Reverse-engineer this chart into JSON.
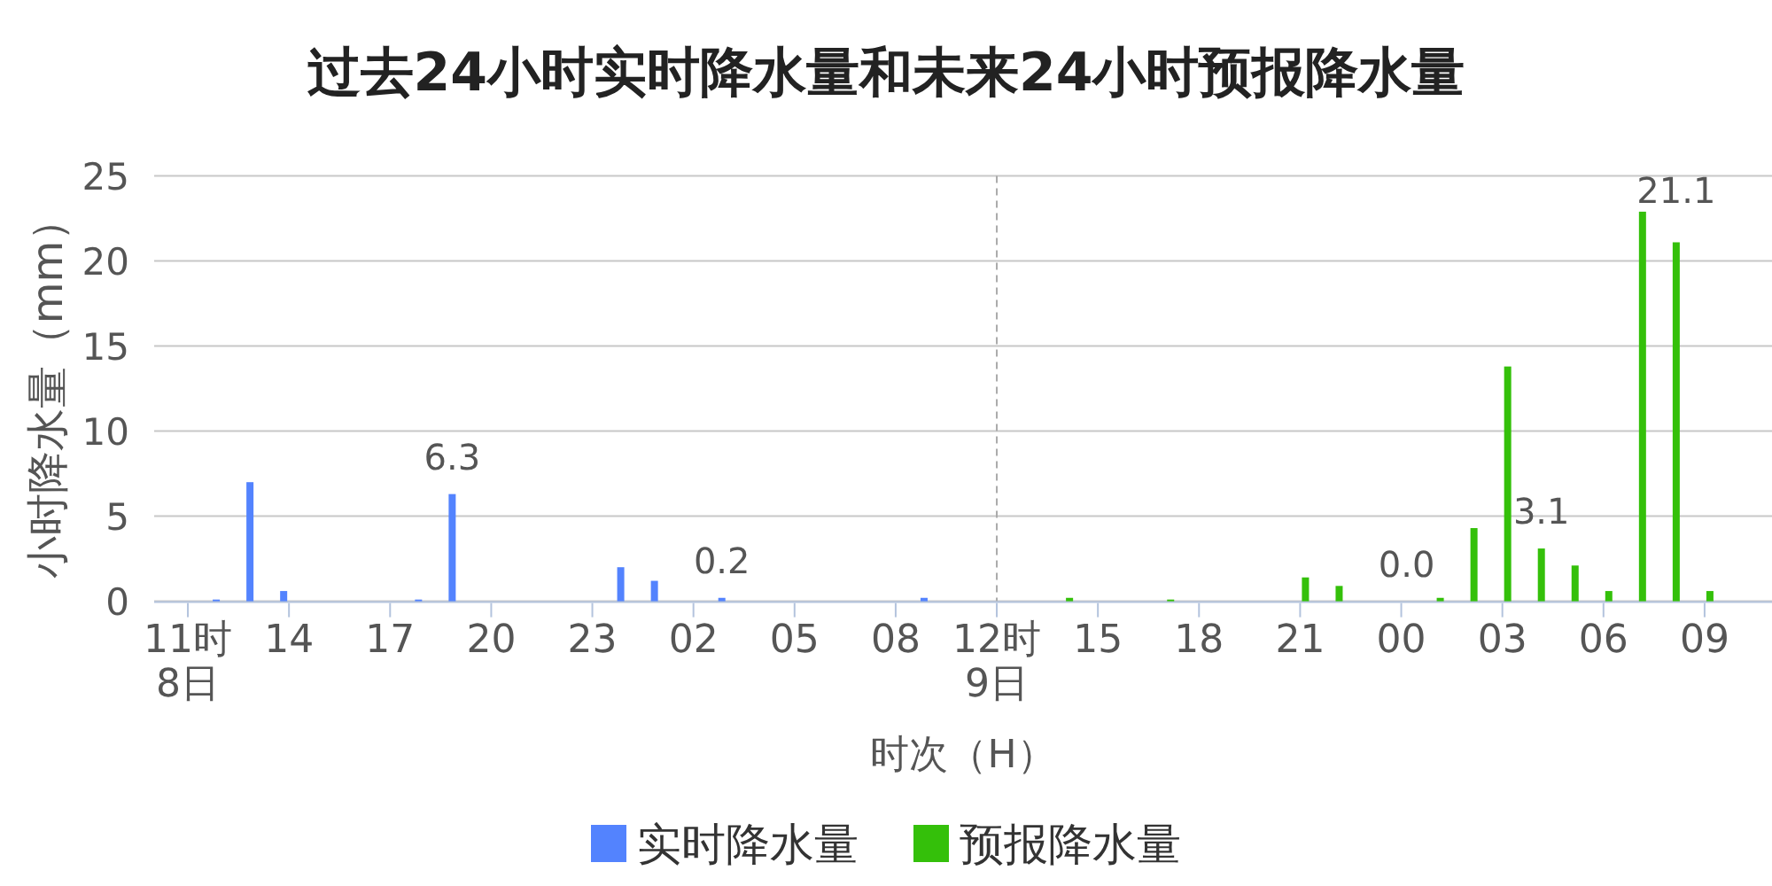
{
  "chart_data": {
    "type": "bar",
    "title": "过去24小时实时降水量和未来24小时预报降水量",
    "xlabel": "时次（H）",
    "ylabel": "小时降水量（mm）",
    "categories": [
      null,
      "11时\n8日",
      null,
      null,
      "14",
      null,
      null,
      "17",
      null,
      null,
      "20",
      null,
      null,
      "23",
      null,
      null,
      "02",
      null,
      null,
      "05",
      null,
      null,
      "08",
      null,
      null,
      "12时\n9日",
      null,
      null,
      "15",
      null,
      null,
      "18",
      null,
      null,
      "21",
      null,
      null,
      "00",
      null,
      null,
      "03",
      null,
      null,
      "06",
      null,
      null,
      "09",
      null,
      null
    ],
    "series": [
      {
        "name": "实时降水量",
        "color": "#5383fe",
        "values": [
          null,
          null,
          0.1,
          7.0,
          0.6,
          null,
          null,
          null,
          0.1,
          6.3,
          null,
          null,
          null,
          null,
          2.0,
          1.2,
          null,
          0.2,
          null,
          null,
          null,
          null,
          null,
          0.2,
          null,
          null,
          null,
          null,
          null,
          null,
          null,
          null,
          null,
          null,
          null,
          null,
          null,
          null,
          null,
          null,
          null,
          null,
          null,
          null,
          null,
          null,
          null,
          null,
          null
        ],
        "value_labels": [
          null,
          null,
          null,
          null,
          null,
          null,
          null,
          null,
          null,
          "6.3",
          null,
          null,
          null,
          null,
          null,
          null,
          null,
          "0.2",
          null,
          null,
          null,
          null,
          null,
          null,
          null,
          null,
          null,
          null,
          null,
          null,
          null,
          null,
          null,
          null,
          null,
          null,
          null,
          null,
          null,
          null,
          null,
          null,
          null,
          null,
          null,
          null,
          null,
          null,
          null
        ]
      },
      {
        "name": "预报降水量",
        "color": "#34c00a",
        "values": [
          null,
          null,
          null,
          null,
          null,
          null,
          null,
          null,
          null,
          null,
          null,
          null,
          null,
          null,
          null,
          null,
          null,
          null,
          null,
          null,
          null,
          null,
          null,
          null,
          null,
          null,
          null,
          0.2,
          null,
          null,
          0.1,
          null,
          null,
          null,
          1.4,
          0.9,
          null,
          0.0,
          0.2,
          4.3,
          13.8,
          3.1,
          2.1,
          0.6,
          22.9,
          21.1,
          0.6,
          null,
          null
        ],
        "value_labels": [
          null,
          null,
          null,
          null,
          null,
          null,
          null,
          null,
          null,
          null,
          null,
          null,
          null,
          null,
          null,
          null,
          null,
          null,
          null,
          null,
          null,
          null,
          null,
          null,
          null,
          null,
          null,
          null,
          null,
          null,
          null,
          null,
          null,
          null,
          null,
          null,
          null,
          "0.0",
          null,
          null,
          null,
          "3.1",
          null,
          null,
          null,
          "21.1",
          null,
          null,
          null
        ]
      }
    ],
    "ylim": [
      0,
      25
    ],
    "yticks": [
      0,
      5,
      10,
      15,
      20,
      25
    ],
    "grid": "y",
    "legend": "bottom",
    "ref_lines": [
      {
        "axis": "x",
        "value": "12时\n9日",
        "line_style": "dashed",
        "color": "#aaaaaa"
      }
    ]
  }
}
